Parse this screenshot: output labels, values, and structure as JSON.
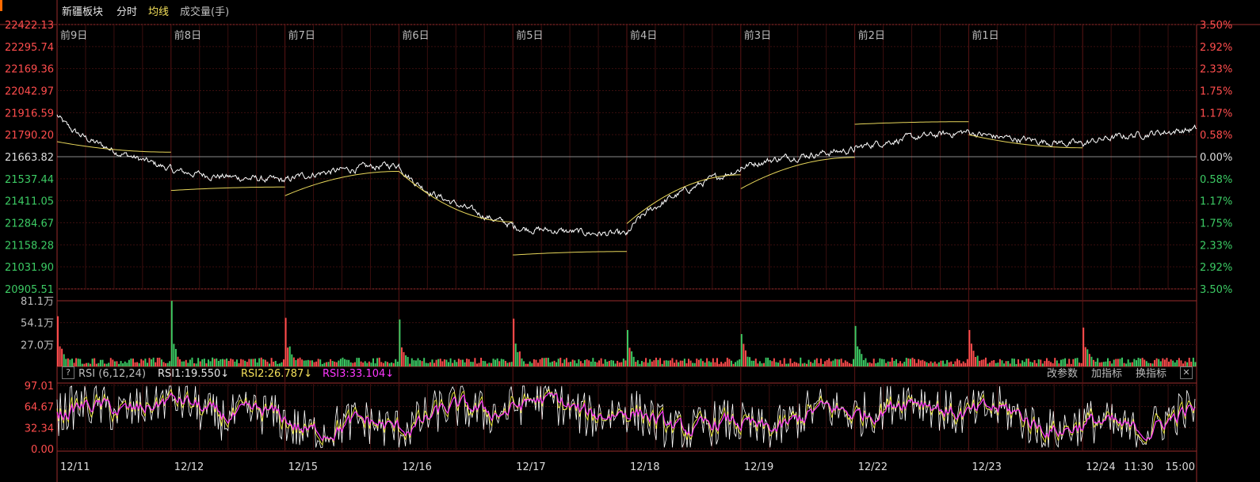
{
  "header": {
    "title": "新疆板块",
    "tab_minute": "分时",
    "tab_avg": "均线",
    "tab_volume": "成交量(手)"
  },
  "colors": {
    "up": "#ff4d4d",
    "down": "#3ccb64",
    "price_line": "#ffffff",
    "avg_line": "#e7d65a",
    "rsi1": "#ffffff",
    "rsi2": "#f5f03a",
    "rsi3": "#ff37ff",
    "grid": "#3a0e0e",
    "axis": "#9a2b2b"
  },
  "rsi_panel": {
    "name": "RSI (6,12,24)",
    "rsi1": "RSI1:19.550↓",
    "rsi2": "RSI2:26.787↓",
    "rsi3": "RSI3:33.104↓",
    "btn_params": "改参数",
    "btn_add": "加指标",
    "btn_switch": "换指标",
    "close": "✕"
  },
  "chart_data": [
    {
      "type": "line",
      "title": "",
      "series": [
        {
          "name": "",
          "values": []
        },
        {
          "name": "均线",
          "values": []
        }
      ],
      "day_labels": [
        "前9日",
        "前8日",
        "前7日",
        "前6日",
        "前5日",
        "前4日",
        "前3日",
        "前2日",
        "前1日"
      ],
      "y_ticks_left": [
        "22422.13",
        "22295.74",
        "22169.36",
        "22042.97",
        "21916.59",
        "21790.20",
        "21663.82",
        "21537.44",
        "21411.05",
        "21284.67",
        "21158.28",
        "21031.90",
        "20905.51"
      ],
      "y_ticks_right": [
        "3.50%",
        "2.92%",
        "2.33%",
        "1.75%",
        "1.17%",
        "0.58%",
        "0.00%",
        "0.58%",
        "1.17%",
        "1.75%",
        "2.33%",
        "2.92%",
        "3.50%"
      ],
      "ylim": [
        20905.51,
        22422.13
      ],
      "prev_close": 21663.82,
      "day_close_anchors": [
        21663.82,
        21590,
        21525,
        21620,
        21265,
        21215,
        21600,
        21705,
        21808,
        21735,
        21822
      ],
      "avg_anchors": [
        [
          21750,
          21690
        ],
        [
          21470,
          21490
        ],
        [
          21440,
          21580
        ],
        [
          21580,
          21290
        ],
        [
          21100,
          21120
        ],
        [
          21280,
          21560
        ],
        [
          21480,
          21660
        ],
        [
          21850,
          21865
        ],
        [
          21790,
          21715
        ]
      ],
      "grid": true
    },
    {
      "type": "bar",
      "title": "",
      "y_ticks": [
        "81.1万",
        "54.1万",
        "27.0万"
      ],
      "ylim": [
        0,
        81.1
      ],
      "unit": "万",
      "spike_values": [
        62,
        81,
        60,
        58,
        59,
        45,
        40,
        50,
        45,
        48
      ]
    },
    {
      "type": "line",
      "title": "",
      "y_ticks": [
        "97.01",
        "64.67",
        "32.34",
        "0.00"
      ],
      "ylim": [
        0,
        97.01
      ],
      "x_ticks": [
        "12/11",
        "12/12",
        "12/15",
        "12/16",
        "12/17",
        "12/18",
        "12/19",
        "12/22",
        "12/23",
        "12/24",
        "11:30",
        "15:00"
      ],
      "series": [
        {
          "name": "RSI1",
          "values": []
        },
        {
          "name": "RSI2",
          "values": []
        },
        {
          "name": "RSI3",
          "values": []
        }
      ],
      "grid": true
    }
  ]
}
